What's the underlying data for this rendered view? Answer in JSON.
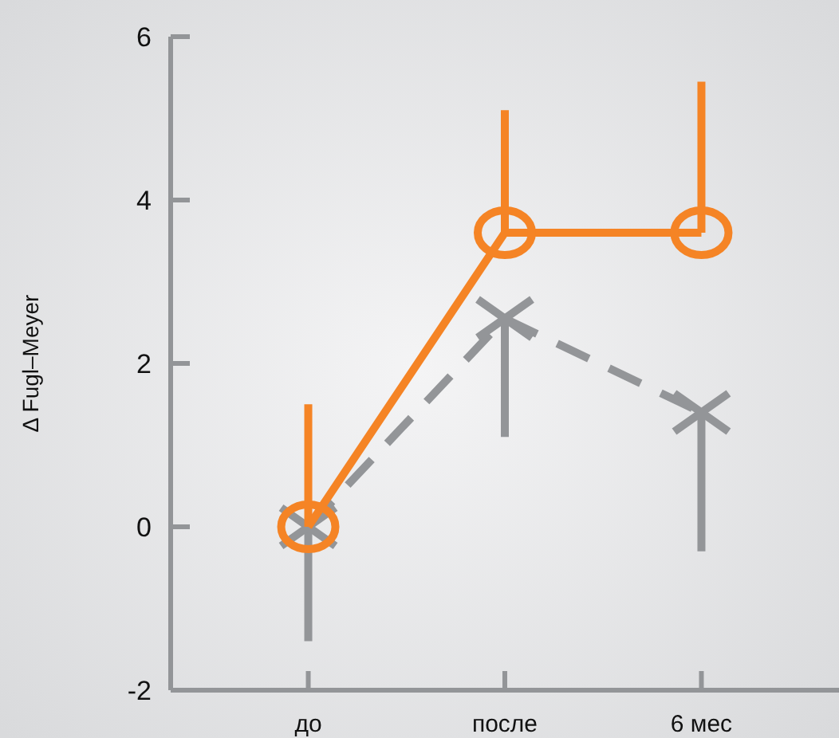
{
  "chart_data": {
    "type": "line",
    "ylabel": "Δ Fugl–Meyer",
    "categories": [
      "до",
      "после",
      "6 мес"
    ],
    "ylim": [
      -2,
      6
    ],
    "yticks": [
      -2,
      0,
      2,
      4,
      6
    ],
    "grid": false,
    "series": [
      {
        "color": "#939598",
        "values": [
          0,
          2.55,
          1.4
        ],
        "errors": [
          [
            -1.4,
            0
          ],
          [
            1.1,
            2.55
          ],
          [
            -0.3,
            1.4
          ]
        ],
        "marker": "cross",
        "line_style": "dashed"
      },
      {
        "color": "#f58425",
        "values": [
          0,
          3.6,
          3.6
        ],
        "errors": [
          [
            0,
            1.5
          ],
          [
            3.6,
            5.1
          ],
          [
            3.6,
            5.45
          ]
        ],
        "marker": "circle",
        "line_style": "solid"
      }
    ]
  }
}
